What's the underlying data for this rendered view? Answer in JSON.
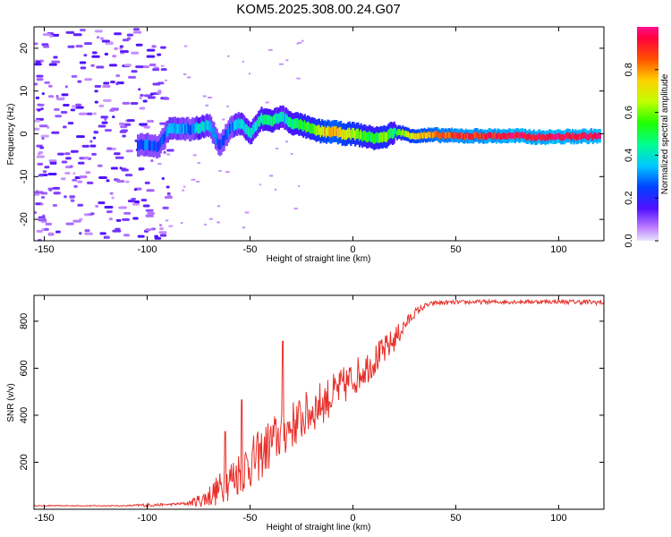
{
  "chart_data": [
    {
      "type": "heatmap",
      "title": "KOM5.2025.308.00.24.G07",
      "xlabel": "Height of straight line (km)",
      "ylabel": "Frequency (Hz)",
      "xlim": [
        -155,
        122
      ],
      "ylim": [
        -25,
        25
      ],
      "x_ticks": [
        -150,
        -100,
        -50,
        0,
        50,
        100
      ],
      "x_tick_labels": [
        "-150",
        "-100",
        "-50",
        "0",
        "50",
        "100"
      ],
      "y_ticks": [
        20,
        10,
        0,
        -10,
        -20
      ],
      "y_tick_labels": [
        "20",
        "10",
        "0",
        "-10",
        "-20"
      ],
      "colorbar": {
        "label": "Normalized spectral amplitude",
        "range": [
          0,
          1
        ],
        "ticks": [
          0.0,
          0.2,
          0.4,
          0.6,
          0.8
        ],
        "tick_labels": [
          "0.0",
          "0.2",
          "0.4",
          "0.6",
          "0.8"
        ]
      },
      "ridge": {
        "x": [
          -105,
          -100,
          -95,
          -90,
          -85,
          -80,
          -75,
          -70,
          -65,
          -60,
          -55,
          -50,
          -45,
          -40,
          -35,
          -30,
          -25,
          -20,
          -15,
          -10,
          -5,
          0,
          5,
          10,
          15,
          20,
          25,
          30,
          40,
          50,
          60,
          70,
          80,
          90,
          100,
          110,
          120
        ],
        "freq": [
          -2.5,
          -2.5,
          -3.0,
          1.0,
          1.3,
          1.0,
          1.5,
          2.0,
          -3.0,
          1.5,
          2.5,
          0.0,
          3.5,
          3.0,
          4.0,
          2.5,
          2.0,
          1.0,
          0.5,
          0.5,
          0.0,
          0.0,
          -0.5,
          -1.0,
          -0.8,
          0.5,
          0.0,
          -0.5,
          -0.3,
          -0.5,
          -0.5,
          -0.5,
          -0.5,
          -0.8,
          -0.7,
          -0.6,
          -0.5
        ],
        "amplitude": [
          0.25,
          0.28,
          0.22,
          0.3,
          0.38,
          0.25,
          0.42,
          0.32,
          0.2,
          0.3,
          0.4,
          0.38,
          0.42,
          0.48,
          0.35,
          0.45,
          0.5,
          0.55,
          0.72,
          0.8,
          0.68,
          0.62,
          0.55,
          0.52,
          0.6,
          0.48,
          0.65,
          0.72,
          0.82,
          0.88,
          0.9,
          0.92,
          0.95,
          0.96,
          0.97,
          0.96,
          0.95
        ]
      }
    },
    {
      "type": "line",
      "xlabel": "Height of straight line (km)",
      "ylabel": "SNR (v/v)",
      "xlim": [
        -155,
        122
      ],
      "ylim": [
        0,
        910
      ],
      "x_ticks": [
        -150,
        -100,
        -50,
        0,
        50,
        100
      ],
      "x_tick_labels": [
        "-150",
        "-100",
        "-50",
        "0",
        "50",
        "100"
      ],
      "y_ticks": [
        200,
        400,
        600,
        800
      ],
      "y_tick_labels": [
        "200",
        "400",
        "600",
        "800"
      ],
      "series": [
        {
          "name": "SNR",
          "color": "#e8302a",
          "x": [
            -155,
            -130,
            -110,
            -100,
            -90,
            -80,
            -72,
            -65,
            -60,
            -55,
            -50,
            -45,
            -40,
            -35,
            -30,
            -25,
            -20,
            -15,
            -10,
            -5,
            0,
            5,
            10,
            15,
            20,
            25,
            30,
            35,
            40,
            50,
            60,
            70,
            80,
            90,
            100,
            110,
            122
          ],
          "values": [
            15,
            15,
            15,
            18,
            20,
            25,
            45,
            85,
            125,
            160,
            195,
            230,
            280,
            320,
            355,
            385,
            420,
            455,
            485,
            520,
            555,
            595,
            630,
            670,
            720,
            780,
            835,
            865,
            878,
            880,
            882,
            882,
            883,
            883,
            883,
            882,
            880
          ],
          "noise": [
            2,
            2,
            2,
            8,
            4,
            8,
            40,
            70,
            90,
            100,
            110,
            110,
            115,
            110,
            105,
            100,
            100,
            95,
            90,
            85,
            80,
            75,
            70,
            65,
            55,
            35,
            20,
            12,
            10,
            9,
            9,
            9,
            9,
            9,
            9,
            10,
            12
          ],
          "peaks": [
            {
              "x": -34,
              "y": 715
            },
            {
              "x": -54,
              "y": 465
            },
            {
              "x": -62,
              "y": 330
            }
          ]
        }
      ]
    }
  ]
}
